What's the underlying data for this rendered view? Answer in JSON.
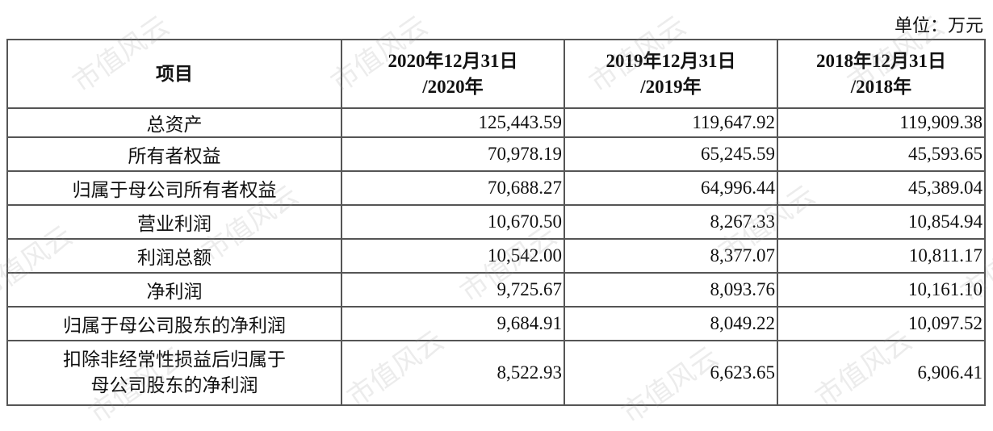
{
  "unit": "单位：万元",
  "watermark": "市值风云",
  "table": {
    "headers": [
      "项目",
      "2020年12月31日\n/2020年",
      "2019年12月31日\n/2019年",
      "2018年12月31日\n/2018年"
    ],
    "rows": [
      {
        "label": "总资产",
        "values": [
          "125,443.59",
          "119,647.92",
          "119,909.38"
        ]
      },
      {
        "label": "所有者权益",
        "values": [
          "70,978.19",
          "65,245.59",
          "45,593.65"
        ]
      },
      {
        "label": "归属于母公司所有者权益",
        "values": [
          "70,688.27",
          "64,996.44",
          "45,389.04"
        ]
      },
      {
        "label": "营业利润",
        "values": [
          "10,670.50",
          "8,267.33",
          "10,854.94"
        ]
      },
      {
        "label": "利润总额",
        "values": [
          "10,542.00",
          "8,377.07",
          "10,811.17"
        ]
      },
      {
        "label": "净利润",
        "values": [
          "9,725.67",
          "8,093.76",
          "10,161.10"
        ]
      },
      {
        "label": "归属于母公司股东的净利润",
        "values": [
          "9,684.91",
          "8,049.22",
          "10,097.52"
        ]
      },
      {
        "label": "扣除非经常性损益后归属于\n母公司股东的净利润",
        "values": [
          "8,522.93",
          "6,623.65",
          "6,906.41"
        ]
      }
    ]
  }
}
